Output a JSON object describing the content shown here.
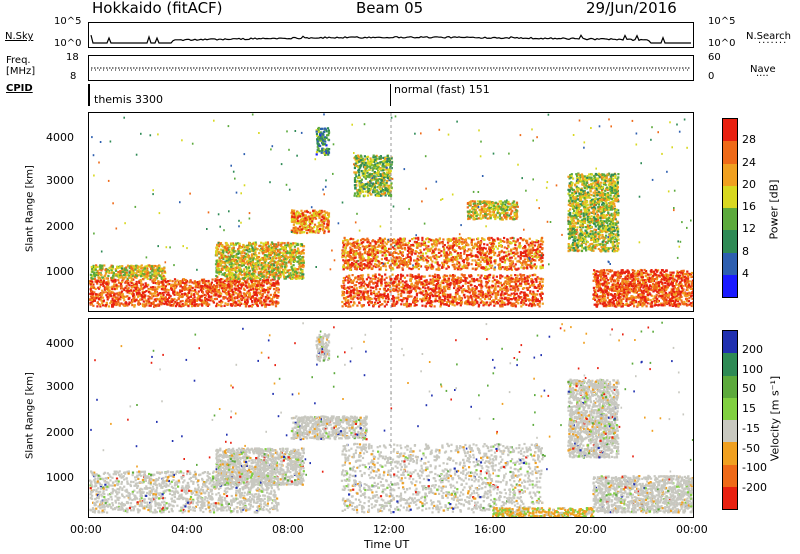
{
  "header": {
    "station": "Hokkaido (fitACF)",
    "beam": "Beam 05",
    "date": "29/Jun/2016"
  },
  "top_panels": {
    "nsky_label": "N.Sky",
    "nsearch_label": "N.Search",
    "nsky_ticks": [
      "10^5",
      "10^0"
    ],
    "nsearch_ticks": [
      "10^5",
      "10^0"
    ],
    "freq_label": "Freq.",
    "freq_unit": "[MHz]",
    "freq_ticks": [
      "18",
      "8"
    ],
    "nave_label": "Nave",
    "nave_ticks": [
      "60",
      "0"
    ],
    "cpid_label": "CPID",
    "cpid_modes": [
      "themis 3300",
      "normal (fast) 151"
    ]
  },
  "chart_data": [
    {
      "type": "heatmap",
      "title": "",
      "xlabel": "Time UT",
      "ylabel": "Slant Range [km]",
      "xlim": [
        0,
        24
      ],
      "ylim": [
        180,
        4500
      ],
      "x_ticks": [
        "00:00",
        "04:00",
        "08:00",
        "12:00",
        "16:00",
        "20:00",
        "00:00"
      ],
      "y_ticks": [
        "1000",
        "2000",
        "3000",
        "4000"
      ],
      "colorbar": {
        "label": "Power [dB]",
        "ticks": [
          "4",
          "8",
          "12",
          "16",
          "20",
          "24",
          "28"
        ],
        "range": [
          0,
          30
        ],
        "colors": [
          "#1a1aff",
          "#2d5fb0",
          "#2e8a55",
          "#5caa3c",
          "#d8d820",
          "#f0a020",
          "#ef6a18",
          "#e82010"
        ]
      },
      "echo_regions": [
        {
          "t": [
            0.0,
            7.5
          ],
          "r": [
            300,
            900
          ],
          "power": 26
        },
        {
          "t": [
            0.0,
            3.0
          ],
          "r": [
            900,
            1200
          ],
          "power": 18
        },
        {
          "t": [
            5.0,
            8.5
          ],
          "r": [
            900,
            1700
          ],
          "power": 18
        },
        {
          "t": [
            9.0,
            9.5
          ],
          "r": [
            3600,
            4200
          ],
          "power": 10
        },
        {
          "t": [
            10.5,
            12.0
          ],
          "r": [
            2700,
            3600
          ],
          "power": 14
        },
        {
          "t": [
            8.0,
            9.5
          ],
          "r": [
            1900,
            2400
          ],
          "power": 22
        },
        {
          "t": [
            10.0,
            18.0
          ],
          "r": [
            1100,
            1800
          ],
          "power": 24
        },
        {
          "t": [
            10.0,
            18.0
          ],
          "r": [
            300,
            1000
          ],
          "power": 26
        },
        {
          "t": [
            15.0,
            17.0
          ],
          "r": [
            2200,
            2600
          ],
          "power": 18
        },
        {
          "t": [
            19.0,
            21.0
          ],
          "r": [
            1500,
            3200
          ],
          "power": 16
        },
        {
          "t": [
            20.0,
            24.0
          ],
          "r": [
            300,
            1100
          ],
          "power": 26
        }
      ]
    },
    {
      "type": "heatmap",
      "title": "",
      "xlabel": "Time UT",
      "ylabel": "Slant Range [km]",
      "xlim": [
        0,
        24
      ],
      "ylim": [
        180,
        4500
      ],
      "x_ticks": [
        "00:00",
        "04:00",
        "08:00",
        "12:00",
        "16:00",
        "20:00",
        "00:00"
      ],
      "y_ticks": [
        "1000",
        "2000",
        "3000",
        "4000"
      ],
      "colorbar": {
        "label": "Velocity [m s⁻¹]",
        "ticks": [
          "200",
          "100",
          "50",
          "15",
          "-15",
          "-50",
          "-100",
          "-200"
        ],
        "range": [
          -250,
          250
        ],
        "colors": [
          "#2030b0",
          "#2e8a55",
          "#5caa3c",
          "#80d040",
          "#c8c8c0",
          "#f0a020",
          "#ef6a18",
          "#e82010"
        ]
      },
      "echo_regions": [
        {
          "t": [
            0.0,
            7.5
          ],
          "r": [
            300,
            1200
          ],
          "velocity": 0
        },
        {
          "t": [
            5.0,
            8.5
          ],
          "r": [
            900,
            1700
          ],
          "velocity": 0
        },
        {
          "t": [
            9.0,
            9.5
          ],
          "r": [
            3600,
            4200
          ],
          "velocity": 0
        },
        {
          "t": [
            8.0,
            11.0
          ],
          "r": [
            1900,
            2400
          ],
          "velocity": 0
        },
        {
          "t": [
            10.0,
            18.0
          ],
          "r": [
            300,
            1800
          ],
          "velocity": 0
        },
        {
          "t": [
            16.0,
            20.0
          ],
          "r": [
            200,
            400
          ],
          "velocity": -40
        },
        {
          "t": [
            19.0,
            21.0
          ],
          "r": [
            1500,
            3200
          ],
          "velocity": 0
        },
        {
          "t": [
            20.0,
            24.0
          ],
          "r": [
            300,
            1100
          ],
          "velocity": 0
        }
      ]
    }
  ]
}
